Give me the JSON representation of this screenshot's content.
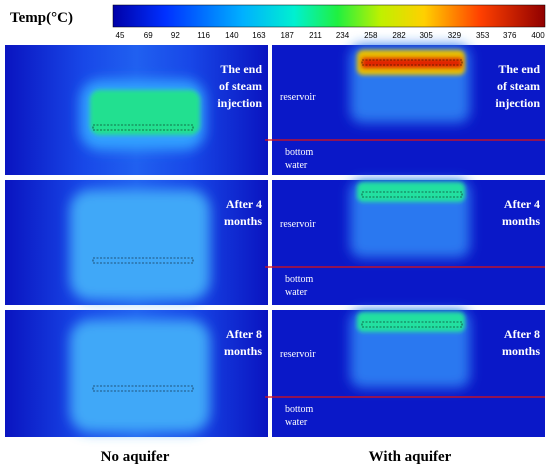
{
  "colorbar": {
    "title": "Temp(°C)",
    "ticks": [
      45,
      69,
      92,
      116,
      140,
      163,
      187,
      211,
      234,
      258,
      282,
      305,
      329,
      353,
      376,
      400
    ]
  },
  "rows": [
    {
      "left": [
        "The end",
        "of steam",
        "injection"
      ],
      "right": [
        "The end",
        "of steam",
        "injection"
      ],
      "reservoir": "reservoir",
      "bottom": [
        "bottom",
        "water"
      ]
    },
    {
      "left": [
        "After 4",
        "months"
      ],
      "right": [
        "After 4",
        "months"
      ],
      "reservoir": "reservoir",
      "bottom": [
        "bottom",
        "water"
      ]
    },
    {
      "left": [
        "After 8",
        "months"
      ],
      "right": [
        "After 8",
        "months"
      ],
      "reservoir": "reservoir",
      "bottom": [
        "bottom",
        "water"
      ]
    }
  ],
  "captions": [
    "No aquifer",
    "With aquifer"
  ]
}
